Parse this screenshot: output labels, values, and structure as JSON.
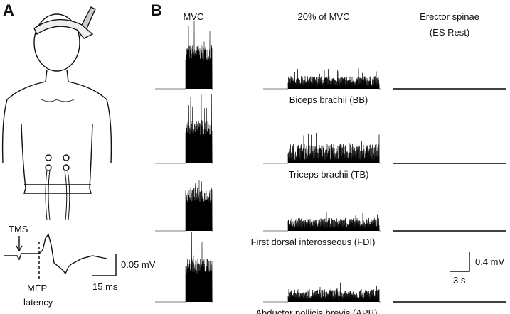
{
  "panels": {
    "a": {
      "label": "A",
      "tms": "TMS",
      "mep": "MEP",
      "latency": "latency",
      "scale_v": "0.05 mV",
      "scale_t": "15 ms"
    },
    "b": {
      "label": "B",
      "columns": [
        "MVC",
        "20% of MVC",
        "Erector spinae",
        "(ES Rest)"
      ],
      "muscles": [
        "Biceps brachii (BB)",
        "Triceps brachii (TB)",
        "First dorsal interosseous (FDI)",
        "Abductor pollicis brevis (APB)"
      ],
      "scale_v": "0.4 mV",
      "scale_t": "3 s"
    }
  }
}
